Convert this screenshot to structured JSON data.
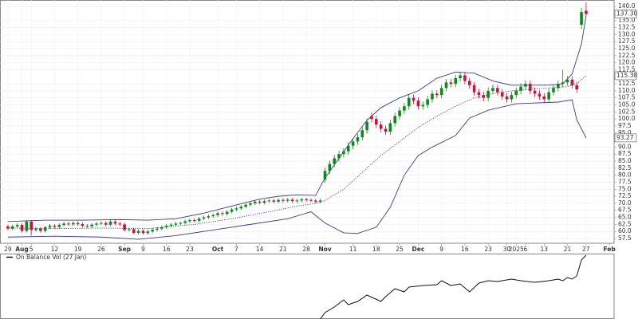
{
  "chart_data": [
    {
      "type": "candlestick",
      "xlim": [
        -1.7,
        130
      ],
      "ylim": [
        55.8,
        142.3
      ],
      "grid": true,
      "up_color": "#0b8a1a",
      "down_color": "#d0103a",
      "xticks": [
        {
          "value": 0,
          "label": "29"
        },
        {
          "value": 3,
          "label": "Aug"
        },
        {
          "value": 5,
          "label": "5"
        },
        {
          "value": 10,
          "label": "12"
        },
        {
          "value": 15,
          "label": "19"
        },
        {
          "value": 20,
          "label": "26"
        },
        {
          "value": 25,
          "label": "Sep"
        },
        {
          "value": 29,
          "label": "9"
        },
        {
          "value": 34,
          "label": "16"
        },
        {
          "value": 39,
          "label": "23"
        },
        {
          "value": 45,
          "label": "Oct"
        },
        {
          "value": 49,
          "label": "7"
        },
        {
          "value": 54,
          "label": "14"
        },
        {
          "value": 59,
          "label": "21"
        },
        {
          "value": 64,
          "label": "28"
        },
        {
          "value": 68,
          "label": "Nov"
        },
        {
          "value": 74,
          "label": "11"
        },
        {
          "value": 79,
          "label": "18"
        },
        {
          "value": 84,
          "label": "25"
        },
        {
          "value": 88,
          "label": "Dec"
        },
        {
          "value": 93,
          "label": "9"
        },
        {
          "value": 98,
          "label": "16"
        },
        {
          "value": 103,
          "label": "23"
        },
        {
          "value": 107,
          "label": "30"
        },
        {
          "value": 109,
          "label": "2025"
        },
        {
          "value": 111,
          "label": "6"
        },
        {
          "value": 115,
          "label": "13"
        },
        {
          "value": 120,
          "label": "21"
        },
        {
          "value": 124,
          "label": "27"
        },
        {
          "value": 129,
          "label": "Feb"
        }
      ],
      "yticks": [
        57.5,
        {
          "value": 60,
          "label": "60.0"
        },
        62.5,
        {
          "value": 65,
          "label": "65.0"
        },
        67.5,
        {
          "value": 70,
          "label": "70.0"
        },
        72.5,
        {
          "value": 75,
          "label": "75.0"
        },
        77.5,
        {
          "value": 80,
          "label": "80.0"
        },
        82.5,
        {
          "value": 85,
          "label": "85.0"
        },
        87.5,
        {
          "value": 90,
          "label": "90.0"
        },
        {
          "value": 95,
          "label": "95.0"
        },
        97.5,
        {
          "value": 100,
          "label": "100.0"
        },
        102.5,
        {
          "value": 105,
          "label": "105.0"
        },
        107.5,
        {
          "value": 110,
          "label": "110.0"
        },
        112.5,
        117.5,
        {
          "value": 120,
          "label": "120.0"
        },
        122.5,
        {
          "value": 125,
          "label": "125.0"
        },
        127.5,
        {
          "value": 130,
          "label": "130.0"
        },
        132.5,
        {
          "value": 135,
          "label": "135.0"
        },
        {
          "value": 140,
          "label": "140.0"
        }
      ],
      "x": [
        0,
        1,
        2,
        3,
        4,
        5,
        6,
        7,
        8,
        9,
        10,
        11,
        12,
        13,
        14,
        15,
        16,
        17,
        18,
        19,
        20,
        21,
        22,
        23,
        24,
        25,
        26,
        27,
        28,
        29,
        30,
        31,
        32,
        33,
        34,
        35,
        36,
        37,
        38,
        39,
        40,
        41,
        42,
        43,
        44,
        45,
        46,
        47,
        48,
        49,
        50,
        51,
        52,
        53,
        54,
        55,
        56,
        57,
        58,
        59,
        60,
        61,
        62,
        63,
        64,
        65,
        66,
        67,
        68,
        69,
        70,
        71,
        72,
        73,
        74,
        75,
        76,
        77,
        78,
        79,
        80,
        81,
        82,
        83,
        84,
        85,
        86,
        87,
        88,
        89,
        90,
        91,
        92,
        93,
        94,
        95,
        96,
        97,
        98,
        99,
        100,
        101,
        102,
        103,
        104,
        105,
        106,
        107,
        108,
        109,
        110,
        111,
        112,
        113,
        114,
        115,
        116,
        117,
        118,
        119,
        120,
        121,
        122,
        123,
        124
      ],
      "open": [
        61.8,
        61.0,
        61.8,
        62.3,
        60.2,
        63.5,
        60.5,
        61.0,
        60.2,
        61.5,
        62.0,
        61.6,
        62.3,
        62.8,
        62.5,
        63.0,
        62.6,
        62.0,
        61.8,
        62.4,
        62.8,
        63.0,
        62.4,
        63.5,
        62.8,
        62.5,
        60.5,
        60.8,
        59.5,
        60.2,
        59.4,
        60.0,
        60.6,
        61.0,
        61.5,
        62.0,
        62.4,
        62.8,
        63.0,
        63.6,
        64.0,
        63.8,
        64.6,
        65.0,
        65.4,
        65.8,
        66.5,
        66.2,
        67.0,
        67.8,
        68.2,
        68.8,
        69.5,
        70.0,
        70.6,
        70.2,
        70.8,
        71.0,
        70.6,
        71.2,
        70.9,
        71.3,
        70.8,
        71.0,
        71.4,
        71.2,
        71.0,
        70.6,
        78.5,
        81.5,
        84.0,
        86.0,
        87.5,
        88.5,
        90.5,
        92.0,
        93.5,
        96.0,
        101.0,
        100.0,
        98.0,
        96.5,
        95.5,
        98.5,
        101.0,
        103.0,
        104.5,
        107.5,
        106.5,
        104.5,
        105.0,
        107.0,
        109.0,
        108.5,
        111.0,
        113.0,
        112.5,
        114.5,
        115.5,
        113.5,
        112.0,
        109.5,
        108.5,
        107.5,
        110.0,
        111.0,
        109.5,
        108.0,
        107.0,
        108.5,
        110.0,
        111.5,
        112.5,
        110.0,
        109.0,
        108.0,
        107.0,
        109.5,
        111.0,
        112.5,
        113.0,
        114.0,
        112.0,
        133.5,
        138.5
      ],
      "high": [
        62.4,
        62.4,
        62.9,
        62.9,
        64.1,
        64.1,
        61.6,
        61.6,
        62.1,
        62.6,
        62.6,
        62.9,
        63.4,
        63.4,
        63.6,
        63.6,
        63.2,
        62.6,
        63.0,
        63.4,
        63.6,
        63.6,
        64.1,
        64.1,
        63.4,
        63.1,
        61.4,
        61.4,
        60.8,
        60.8,
        60.6,
        61.2,
        61.6,
        62.1,
        62.6,
        63.0,
        63.4,
        63.6,
        64.2,
        64.6,
        64.6,
        65.2,
        65.6,
        66.0,
        66.4,
        67.1,
        67.1,
        67.6,
        68.4,
        68.8,
        69.4,
        70.1,
        70.6,
        71.2,
        71.2,
        71.4,
        71.6,
        71.6,
        71.8,
        71.8,
        71.9,
        71.9,
        71.6,
        72.0,
        72.0,
        71.8,
        71.6,
        71.6,
        82.7,
        85.2,
        87.2,
        88.7,
        89.7,
        91.7,
        93.2,
        94.7,
        97.2,
        100.2,
        102.2,
        101.2,
        99.2,
        97.7,
        99.7,
        102.2,
        104.2,
        105.7,
        108.7,
        108.7,
        107.7,
        106.2,
        108.2,
        110.2,
        110.2,
        112.2,
        114.2,
        114.2,
        115.7,
        116.7,
        116.7,
        114.7,
        113.2,
        110.7,
        109.7,
        111.2,
        112.2,
        112.2,
        110.7,
        109.2,
        109.7,
        111.2,
        112.7,
        113.7,
        113.7,
        111.2,
        110.2,
        109.2,
        110.7,
        112.2,
        113.7,
        117.5,
        115.2,
        115.2,
        113.2,
        139.5,
        141.5
      ],
      "low": [
        60.4,
        60.4,
        61.2,
        59.6,
        59.6,
        58.5,
        59.9,
        59.6,
        59.6,
        60.9,
        61.0,
        61.0,
        61.7,
        61.9,
        61.9,
        62.0,
        61.4,
        61.2,
        61.2,
        61.8,
        62.2,
        61.8,
        61.8,
        62.2,
        61.9,
        59.9,
        59.9,
        58.9,
        58.9,
        58.8,
        58.8,
        59.4,
        60.0,
        60.4,
        60.9,
        61.4,
        61.8,
        62.2,
        62.4,
        63.0,
        63.2,
        63.2,
        64.0,
        64.4,
        64.8,
        65.2,
        65.6,
        65.6,
        66.4,
        67.2,
        67.6,
        68.2,
        68.9,
        69.4,
        69.6,
        69.6,
        70.2,
        70.0,
        70.0,
        70.3,
        70.3,
        70.2,
        70.2,
        70.4,
        70.6,
        70.4,
        70.0,
        70.0,
        77.3,
        80.3,
        82.8,
        84.8,
        86.3,
        87.3,
        89.3,
        90.8,
        92.3,
        94.8,
        98.8,
        96.8,
        95.3,
        94.3,
        94.3,
        97.3,
        99.8,
        101.8,
        103.3,
        105.3,
        103.3,
        103.3,
        103.8,
        105.8,
        107.3,
        107.3,
        109.8,
        111.3,
        111.3,
        113.3,
        112.3,
        110.8,
        108.3,
        107.3,
        106.3,
        106.3,
        108.8,
        108.3,
        106.8,
        105.8,
        105.8,
        107.3,
        108.8,
        110.3,
        108.8,
        107.8,
        106.8,
        105.8,
        105.8,
        108.3,
        109.8,
        111.3,
        111.8,
        110.8,
        109.3,
        132.0,
        136.5
      ],
      "close": [
        61.0,
        61.8,
        62.3,
        60.2,
        63.5,
        60.5,
        61.0,
        60.2,
        61.5,
        62.0,
        61.6,
        62.3,
        62.8,
        62.5,
        63.0,
        62.6,
        62.0,
        61.8,
        62.4,
        62.8,
        63.0,
        62.4,
        63.5,
        62.8,
        62.5,
        60.5,
        60.8,
        59.5,
        60.2,
        59.4,
        60.0,
        60.6,
        61.0,
        61.5,
        62.0,
        62.4,
        62.8,
        63.0,
        63.6,
        64.0,
        63.8,
        64.6,
        65.0,
        65.4,
        65.8,
        66.5,
        66.2,
        67.0,
        67.8,
        68.2,
        68.8,
        69.5,
        70.0,
        70.6,
        70.2,
        70.8,
        71.0,
        70.6,
        71.2,
        70.9,
        71.3,
        70.8,
        71.0,
        71.4,
        71.2,
        71.0,
        70.6,
        71.0,
        81.5,
        84.0,
        86.0,
        87.5,
        88.5,
        90.5,
        92.0,
        93.5,
        96.0,
        99.0,
        100.0,
        98.0,
        96.5,
        95.5,
        98.5,
        101.0,
        103.0,
        104.5,
        107.5,
        106.5,
        104.5,
        105.0,
        107.0,
        109.0,
        108.5,
        111.0,
        113.0,
        112.5,
        114.5,
        115.5,
        113.5,
        112.0,
        109.5,
        108.5,
        107.5,
        110.0,
        111.0,
        109.5,
        108.0,
        107.0,
        108.5,
        110.0,
        111.5,
        112.5,
        110.0,
        109.0,
        108.0,
        107.0,
        109.5,
        111.0,
        112.5,
        113.0,
        114.0,
        112.0,
        110.5,
        138.0,
        137.3
      ],
      "close_labels": [
        null,
        null,
        null,
        null,
        null,
        null,
        null,
        null,
        null,
        null,
        null,
        null,
        null,
        null,
        null,
        null,
        null,
        null,
        null,
        null,
        null,
        null,
        null,
        null,
        null,
        null,
        null,
        null,
        null,
        null,
        null,
        null,
        null,
        null,
        null,
        null,
        null,
        null,
        null,
        null,
        null,
        null,
        null,
        null,
        null,
        null,
        null,
        null,
        null,
        null,
        null,
        null,
        null,
        null,
        null,
        null,
        null,
        null,
        null,
        null,
        null,
        null,
        null,
        null,
        null,
        null,
        null,
        null,
        null,
        null,
        null,
        null,
        null,
        null,
        null,
        null,
        null,
        null,
        null,
        null,
        null,
        null,
        null,
        null,
        null,
        null,
        null,
        null,
        null,
        null,
        null,
        null,
        null,
        null,
        null,
        null,
        null,
        null,
        null,
        null,
        null,
        null,
        null,
        null,
        null,
        null,
        null,
        null,
        null,
        null,
        null,
        null,
        null,
        null,
        null,
        null,
        null,
        null,
        null,
        null,
        null,
        null,
        null,
        null,
        "137.30"
      ],
      "overlays": [
        {
          "color": "#3a3a96",
          "dash": false,
          "x": [
            0,
            8,
            16,
            24,
            30,
            36,
            42,
            48,
            54,
            58,
            62,
            66,
            68,
            71,
            74,
            77,
            80,
            84,
            88,
            92,
            96,
            100,
            104,
            108,
            112,
            116,
            119,
            121,
            123,
            124
          ],
          "values": [
            63.5,
            64,
            64,
            64.2,
            64,
            64.5,
            66.5,
            69,
            71.5,
            72.5,
            73,
            72.8,
            79,
            86,
            93,
            99.5,
            104,
            107.5,
            110,
            114.5,
            116.7,
            116.3,
            113.5,
            112,
            112,
            112,
            112.5,
            116,
            126.7,
            136.6
          ]
        },
        {
          "color": "#3a3a96",
          "dash": true,
          "x": [
            0,
            10,
            20,
            30,
            40,
            48,
            56,
            62,
            66,
            68,
            72,
            76,
            80,
            84,
            88,
            92,
            96,
            100,
            104,
            108,
            112,
            116,
            120,
            122,
            124
          ],
          "values": [
            61.2,
            61,
            61.2,
            61,
            62.5,
            64.5,
            67,
            69,
            70,
            71,
            75,
            81,
            87,
            92,
            97,
            101,
            104.5,
            107.5,
            109,
            110,
            110.5,
            111,
            111.5,
            112.5,
            115.38
          ],
          "value_labels": [
            null,
            null,
            null,
            null,
            null,
            null,
            null,
            null,
            null,
            null,
            null,
            null,
            null,
            null,
            null,
            null,
            null,
            null,
            null,
            null,
            null,
            null,
            null,
            null,
            "115.38"
          ]
        },
        {
          "color": "#3a3a96",
          "dash": false,
          "x": [
            0,
            10,
            20,
            28,
            36,
            44,
            52,
            60,
            65,
            68,
            72,
            75,
            79,
            82,
            85,
            88,
            91,
            96,
            99,
            103,
            109,
            118,
            121,
            122,
            124
          ],
          "values": [
            58,
            58.3,
            58,
            57.2,
            58.5,
            60.5,
            62.5,
            64.5,
            67,
            63,
            59.5,
            59.3,
            61.5,
            68.6,
            80,
            87,
            90,
            94.1,
            100.3,
            103.1,
            105.4,
            106,
            106.8,
            99.7,
            93.27
          ],
          "value_labels": [
            null,
            null,
            null,
            null,
            null,
            null,
            null,
            null,
            null,
            null,
            null,
            null,
            null,
            null,
            null,
            null,
            null,
            null,
            null,
            null,
            null,
            null,
            null,
            null,
            "93.27"
          ]
        }
      ]
    },
    {
      "type": "line",
      "title": "On Balance Vol (27 Jan)",
      "color": "#111111",
      "xlim": [
        -1.7,
        130
      ],
      "ylim": [
        0,
        82
      ],
      "x": [
        67,
        68,
        70,
        72,
        73,
        75,
        77,
        80,
        81,
        83,
        85,
        86,
        89,
        92,
        93,
        95,
        97,
        99,
        101,
        103,
        105,
        108,
        110,
        113,
        116,
        118,
        119,
        120,
        121,
        122,
        123,
        124
      ],
      "values": [
        0,
        8,
        15,
        24,
        18,
        22,
        30,
        22,
        28,
        38,
        34,
        40,
        42,
        43,
        48,
        42,
        44,
        34,
        45,
        48,
        47,
        50,
        48,
        46,
        48,
        50,
        48,
        52,
        50,
        54,
        74,
        80
      ]
    }
  ]
}
